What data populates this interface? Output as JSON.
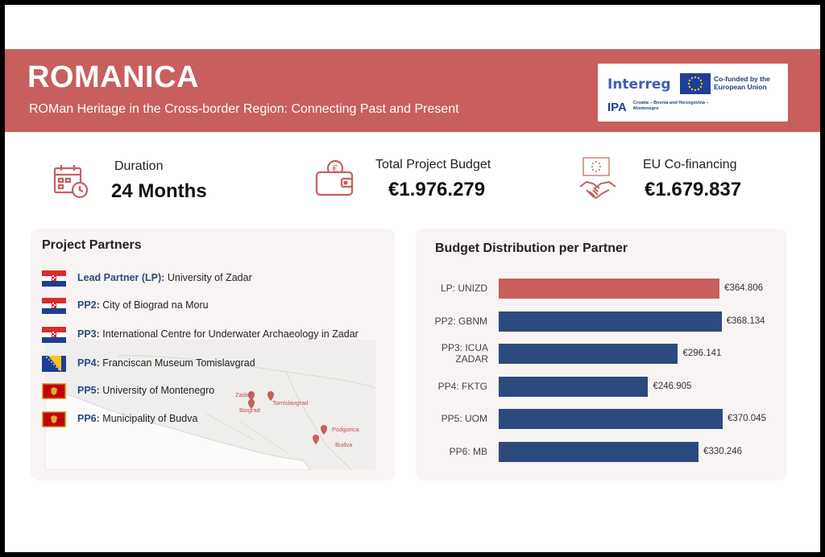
{
  "header": {
    "title": "ROMANICA",
    "subtitle": "ROMan Heritage in the Cross-border Region: Connecting Past and Present",
    "logo": {
      "interreg": "Interreg",
      "cofunded": "Co-funded by the European Union",
      "ipa": "IPA",
      "ipa_sub": "Croatia – Bosnia and Herzegovina – Montenegro"
    }
  },
  "stats": {
    "duration": {
      "label": "Duration",
      "value": "24 Months",
      "icon": "calendar-clock-icon"
    },
    "budget": {
      "label": "Total Project Budget",
      "value": "€1.976.279",
      "icon": "wallet-icon"
    },
    "eu": {
      "label": "EU Co-financing",
      "value": "€1.679.837",
      "icon": "handshake-icon"
    }
  },
  "partners": {
    "title": "Project Partners",
    "items": [
      {
        "code": "Lead Partner (LP):",
        "name": "University of Zadar",
        "flag": "croatia"
      },
      {
        "code": "PP2:",
        "name": "City of Biograd na Moru",
        "flag": "croatia"
      },
      {
        "code": "PP3:",
        "name": "International Centre for Underwater Archaeology in Zadar",
        "flag": "croatia"
      },
      {
        "code": "PP4:",
        "name": "Franciscan Museum Tomislavgrad",
        "flag": "bosnia"
      },
      {
        "code": "PP5:",
        "name": "University of Montenegro",
        "flag": "montenegro"
      },
      {
        "code": "PP6:",
        "name": "Municipality of Budva",
        "flag": "montenegro"
      }
    ],
    "map_labels": [
      "Zadar",
      "Biograd",
      "Tomislavgrad",
      "Podgorica",
      "Budva"
    ]
  },
  "chart_data": {
    "type": "bar",
    "orientation": "horizontal",
    "title": "Budget Distribution per Partner",
    "categories": [
      "LP: UNIZD",
      "PP2: GBNM",
      "PP3: ICUA ZADAR",
      "PP4: FKTG",
      "PP5: UOM",
      "PP6: MB"
    ],
    "values": [
      364806,
      368134,
      296141,
      246905,
      370045,
      330246
    ],
    "value_labels": [
      "€364.806",
      "€368.134",
      "€296.141",
      "€246.905",
      "€370.045",
      "€330.246"
    ],
    "colors": [
      "#c85f5c",
      "#2c4a7d",
      "#2c4a7d",
      "#2c4a7d",
      "#2c4a7d",
      "#2c4a7d"
    ]
  },
  "colors": {
    "accent": "#c85f5c",
    "navy": "#2c4a7d"
  }
}
